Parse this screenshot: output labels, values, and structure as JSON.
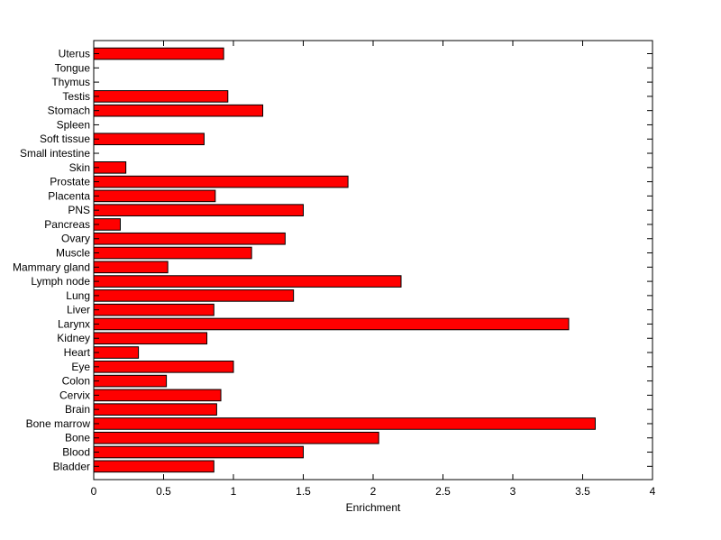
{
  "chart_data": {
    "type": "bar",
    "orientation": "horizontal",
    "categories": [
      "Bladder",
      "Blood",
      "Bone",
      "Bone marrow",
      "Brain",
      "Cervix",
      "Colon",
      "Eye",
      "Heart",
      "Kidney",
      "Larynx",
      "Liver",
      "Lung",
      "Lymph node",
      "Mammary gland",
      "Muscle",
      "Ovary",
      "Pancreas",
      "PNS",
      "Placenta",
      "Prostate",
      "Skin",
      "Small intestine",
      "Soft tissue",
      "Spleen",
      "Stomach",
      "Testis",
      "Thymus",
      "Tongue",
      "Uterus"
    ],
    "values": [
      0.86,
      1.5,
      2.04,
      3.59,
      0.88,
      0.91,
      0.52,
      1.0,
      0.32,
      0.81,
      3.4,
      0.86,
      1.43,
      2.2,
      0.53,
      1.13,
      1.37,
      0.19,
      1.5,
      0.87,
      1.82,
      0.23,
      0,
      0.79,
      0,
      1.21,
      0.96,
      0,
      0,
      0.93
    ],
    "xlabel": "Enrichment",
    "ylabel": "",
    "title": "",
    "xlim": [
      0,
      4
    ],
    "xticks": [
      0,
      0.5,
      1,
      1.5,
      2,
      2.5,
      3,
      3.5,
      4
    ],
    "xtick_labels": [
      "0",
      "0.5",
      "1",
      "1.5",
      "2",
      "2.5",
      "3",
      "3.5",
      "4"
    ],
    "bar_color": "#ff0000",
    "edge_color": "#000000",
    "grid": false,
    "legend": "none"
  }
}
